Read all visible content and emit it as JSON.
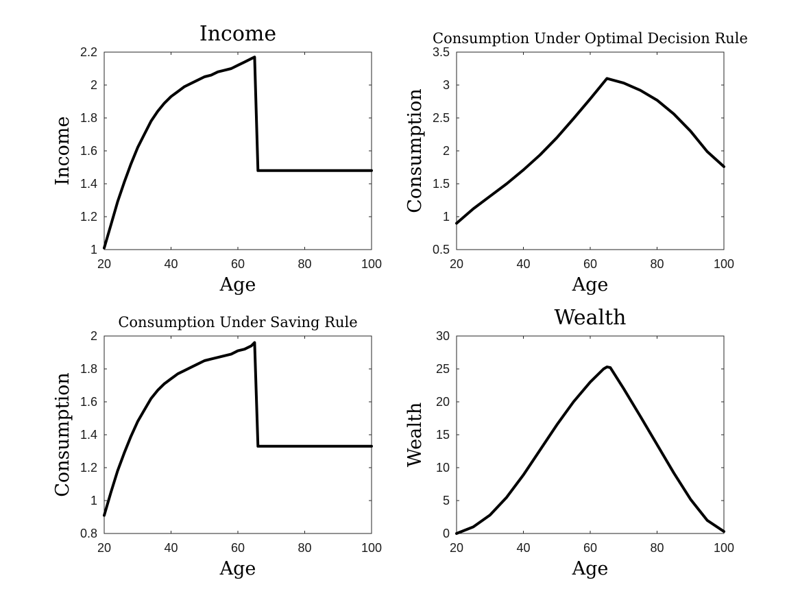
{
  "chart_data": [
    {
      "type": "line",
      "title": "Income",
      "xlabel": "Age",
      "ylabel": "Income",
      "xlim": [
        20,
        100
      ],
      "ylim": [
        1,
        2.2
      ],
      "xticks": [
        20,
        40,
        60,
        80,
        100
      ],
      "yticks": [
        1,
        1.2,
        1.4,
        1.6,
        1.8,
        2,
        2.2
      ],
      "x": [
        20,
        22,
        24,
        26,
        28,
        30,
        32,
        34,
        36,
        38,
        40,
        42,
        44,
        46,
        48,
        50,
        52,
        54,
        56,
        58,
        60,
        62,
        64,
        65,
        66,
        70,
        80,
        90,
        100
      ],
      "y": [
        1.01,
        1.15,
        1.29,
        1.41,
        1.52,
        1.62,
        1.7,
        1.78,
        1.84,
        1.89,
        1.93,
        1.96,
        1.99,
        2.01,
        2.03,
        2.05,
        2.06,
        2.08,
        2.09,
        2.1,
        2.12,
        2.14,
        2.16,
        2.17,
        1.48,
        1.48,
        1.48,
        1.48,
        1.48
      ]
    },
    {
      "type": "line",
      "title": "Consumption Under Optimal Decision Rule",
      "xlabel": "Age",
      "ylabel": "Consumption",
      "xlim": [
        20,
        100
      ],
      "ylim": [
        0.5,
        3.5
      ],
      "xticks": [
        20,
        40,
        60,
        80,
        100
      ],
      "yticks": [
        0.5,
        1,
        1.5,
        2,
        2.5,
        3,
        3.5
      ],
      "x": [
        20,
        25,
        30,
        35,
        40,
        45,
        50,
        55,
        60,
        65,
        70,
        75,
        80,
        85,
        90,
        95,
        100
      ],
      "y": [
        0.9,
        1.12,
        1.31,
        1.5,
        1.71,
        1.94,
        2.2,
        2.49,
        2.79,
        3.1,
        3.03,
        2.92,
        2.77,
        2.56,
        2.3,
        1.99,
        1.76
      ]
    },
    {
      "type": "line",
      "title": "Consumption Under Saving Rule",
      "xlabel": "Age",
      "ylabel": "Consumption",
      "xlim": [
        20,
        100
      ],
      "ylim": [
        0.8,
        2
      ],
      "xticks": [
        20,
        40,
        60,
        80,
        100
      ],
      "yticks": [
        0.8,
        1,
        1.2,
        1.4,
        1.6,
        1.8,
        2
      ],
      "x": [
        20,
        22,
        24,
        26,
        28,
        30,
        32,
        34,
        36,
        38,
        40,
        42,
        44,
        46,
        48,
        50,
        52,
        54,
        56,
        58,
        60,
        62,
        64,
        65,
        66,
        70,
        80,
        90,
        100
      ],
      "y": [
        0.91,
        1.05,
        1.18,
        1.29,
        1.39,
        1.48,
        1.55,
        1.62,
        1.67,
        1.71,
        1.74,
        1.77,
        1.79,
        1.81,
        1.83,
        1.85,
        1.86,
        1.87,
        1.88,
        1.89,
        1.91,
        1.92,
        1.94,
        1.96,
        1.33,
        1.33,
        1.33,
        1.33,
        1.33
      ]
    },
    {
      "type": "line",
      "title": "Wealth",
      "xlabel": "Age",
      "ylabel": "Wealth",
      "xlim": [
        20,
        100
      ],
      "ylim": [
        0,
        30
      ],
      "xticks": [
        20,
        40,
        60,
        80,
        100
      ],
      "yticks": [
        0,
        5,
        10,
        15,
        20,
        25,
        30
      ],
      "x": [
        20,
        25,
        30,
        35,
        40,
        45,
        50,
        55,
        60,
        64,
        65,
        66,
        70,
        75,
        80,
        85,
        90,
        95,
        100
      ],
      "y": [
        0.0,
        1.0,
        2.8,
        5.5,
        8.9,
        12.7,
        16.5,
        20.0,
        23.0,
        25.0,
        25.3,
        25.2,
        22.0,
        17.8,
        13.5,
        9.2,
        5.2,
        2.0,
        0.3
      ]
    }
  ]
}
